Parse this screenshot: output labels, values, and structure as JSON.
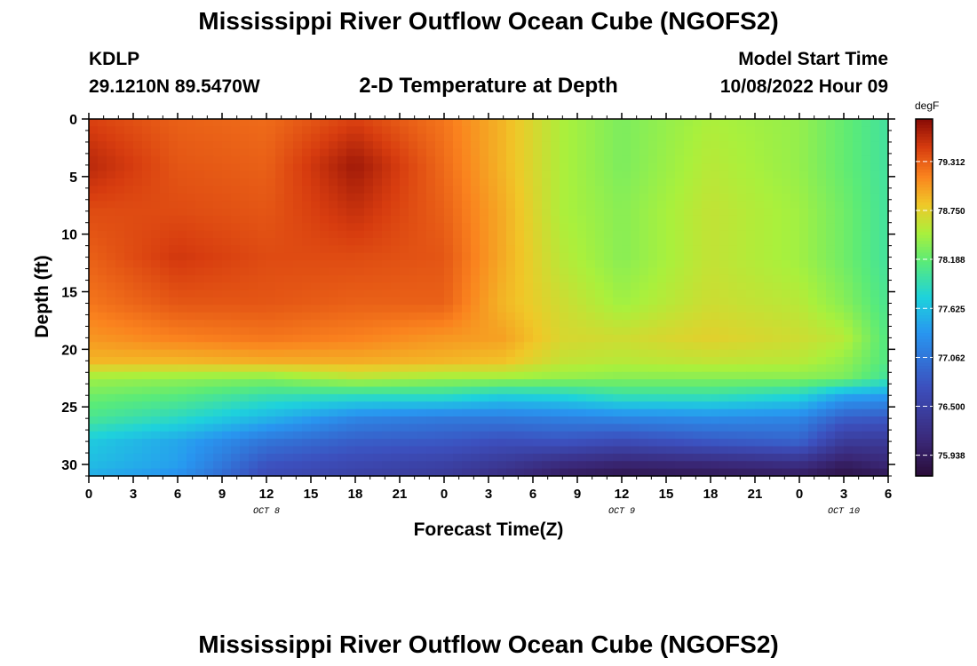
{
  "page": {
    "title": "Mississippi River Outflow Ocean Cube (NGOFS2)",
    "bottom_title": "Mississippi River Outflow Ocean Cube (NGOFS2)"
  },
  "header": {
    "station": "KDLP",
    "coords": "29.1210N  89.5470W",
    "subtitle": "2-D Temperature at Depth",
    "model_start_label": "Model Start Time",
    "model_start_value": "10/08/2022 Hour 09"
  },
  "chart_data": {
    "type": "heatmap",
    "xlabel": "Forecast Time(Z)",
    "ylabel": "Depth (ft)",
    "x_ticks": [
      "0",
      "3",
      "6",
      "9",
      "12",
      "15",
      "18",
      "21",
      "0",
      "3",
      "6",
      "9",
      "12",
      "15",
      "18",
      "21",
      "0",
      "3",
      "6"
    ],
    "x_range_hours": [
      0,
      54
    ],
    "date_labels": [
      {
        "label": "OCT 8",
        "hour": 12
      },
      {
        "label": "OCT 9",
        "hour": 36
      },
      {
        "label": "OCT 10",
        "hour": 51
      }
    ],
    "y_ticks": [
      "0",
      "5",
      "10",
      "15",
      "20",
      "25",
      "30"
    ],
    "y_range_ft": [
      0,
      31
    ],
    "colorbar": {
      "unit": "degF",
      "min": 75.7,
      "max": 79.8,
      "tick_labels": [
        "79.312",
        "78.750",
        "78.188",
        "77.625",
        "77.062",
        "76.500",
        "75.938"
      ],
      "tick_values": [
        79.312,
        78.75,
        78.188,
        77.625,
        77.062,
        76.5,
        75.938
      ]
    },
    "grid": false,
    "depths_ft": [
      0,
      4,
      8,
      12,
      16,
      19,
      21,
      22.5,
      24,
      26,
      28,
      30,
      31
    ],
    "hours": [
      0,
      6,
      12,
      18,
      24,
      28,
      32,
      36,
      42,
      48,
      51,
      54
    ],
    "values": [
      [
        79.45,
        79.3,
        79.25,
        79.45,
        79.2,
        78.9,
        78.5,
        78.3,
        78.5,
        78.4,
        78.2,
        78.0
      ],
      [
        79.6,
        79.35,
        79.3,
        79.7,
        79.25,
        78.9,
        78.5,
        78.3,
        78.55,
        78.4,
        78.2,
        78.0
      ],
      [
        79.4,
        79.4,
        79.35,
        79.55,
        79.3,
        78.95,
        78.5,
        78.35,
        78.6,
        78.45,
        78.25,
        78.0
      ],
      [
        79.3,
        79.5,
        79.4,
        79.4,
        79.35,
        78.95,
        78.55,
        78.35,
        78.6,
        78.45,
        78.25,
        78.0
      ],
      [
        79.2,
        79.35,
        79.35,
        79.3,
        79.3,
        78.9,
        78.65,
        78.45,
        78.65,
        78.55,
        78.35,
        78.05
      ],
      [
        79.05,
        79.15,
        79.2,
        79.15,
        79.05,
        79.0,
        78.7,
        78.65,
        78.75,
        78.65,
        78.55,
        78.1
      ],
      [
        78.9,
        78.9,
        78.95,
        78.95,
        78.9,
        78.85,
        78.6,
        78.55,
        78.6,
        78.55,
        78.4,
        78.1
      ],
      [
        78.45,
        78.4,
        78.35,
        78.55,
        78.45,
        78.45,
        78.4,
        78.35,
        78.35,
        78.35,
        78.3,
        78.0
      ],
      [
        78.25,
        78.15,
        77.95,
        77.9,
        77.9,
        77.75,
        77.8,
        77.95,
        77.95,
        77.8,
        77.45,
        77.4
      ],
      [
        78.05,
        77.85,
        77.55,
        77.2,
        77.1,
        77.1,
        77.15,
        77.2,
        77.25,
        77.2,
        76.85,
        76.8
      ],
      [
        77.7,
        77.45,
        77.05,
        76.85,
        76.8,
        76.7,
        76.75,
        76.65,
        76.8,
        76.9,
        76.4,
        76.4
      ],
      [
        77.6,
        77.4,
        76.75,
        76.6,
        76.5,
        76.35,
        76.15,
        76.05,
        76.1,
        76.2,
        75.95,
        76.1
      ],
      [
        77.5,
        77.3,
        76.65,
        76.5,
        76.4,
        76.2,
        75.95,
        75.85,
        75.9,
        75.95,
        75.8,
        75.9
      ]
    ]
  }
}
